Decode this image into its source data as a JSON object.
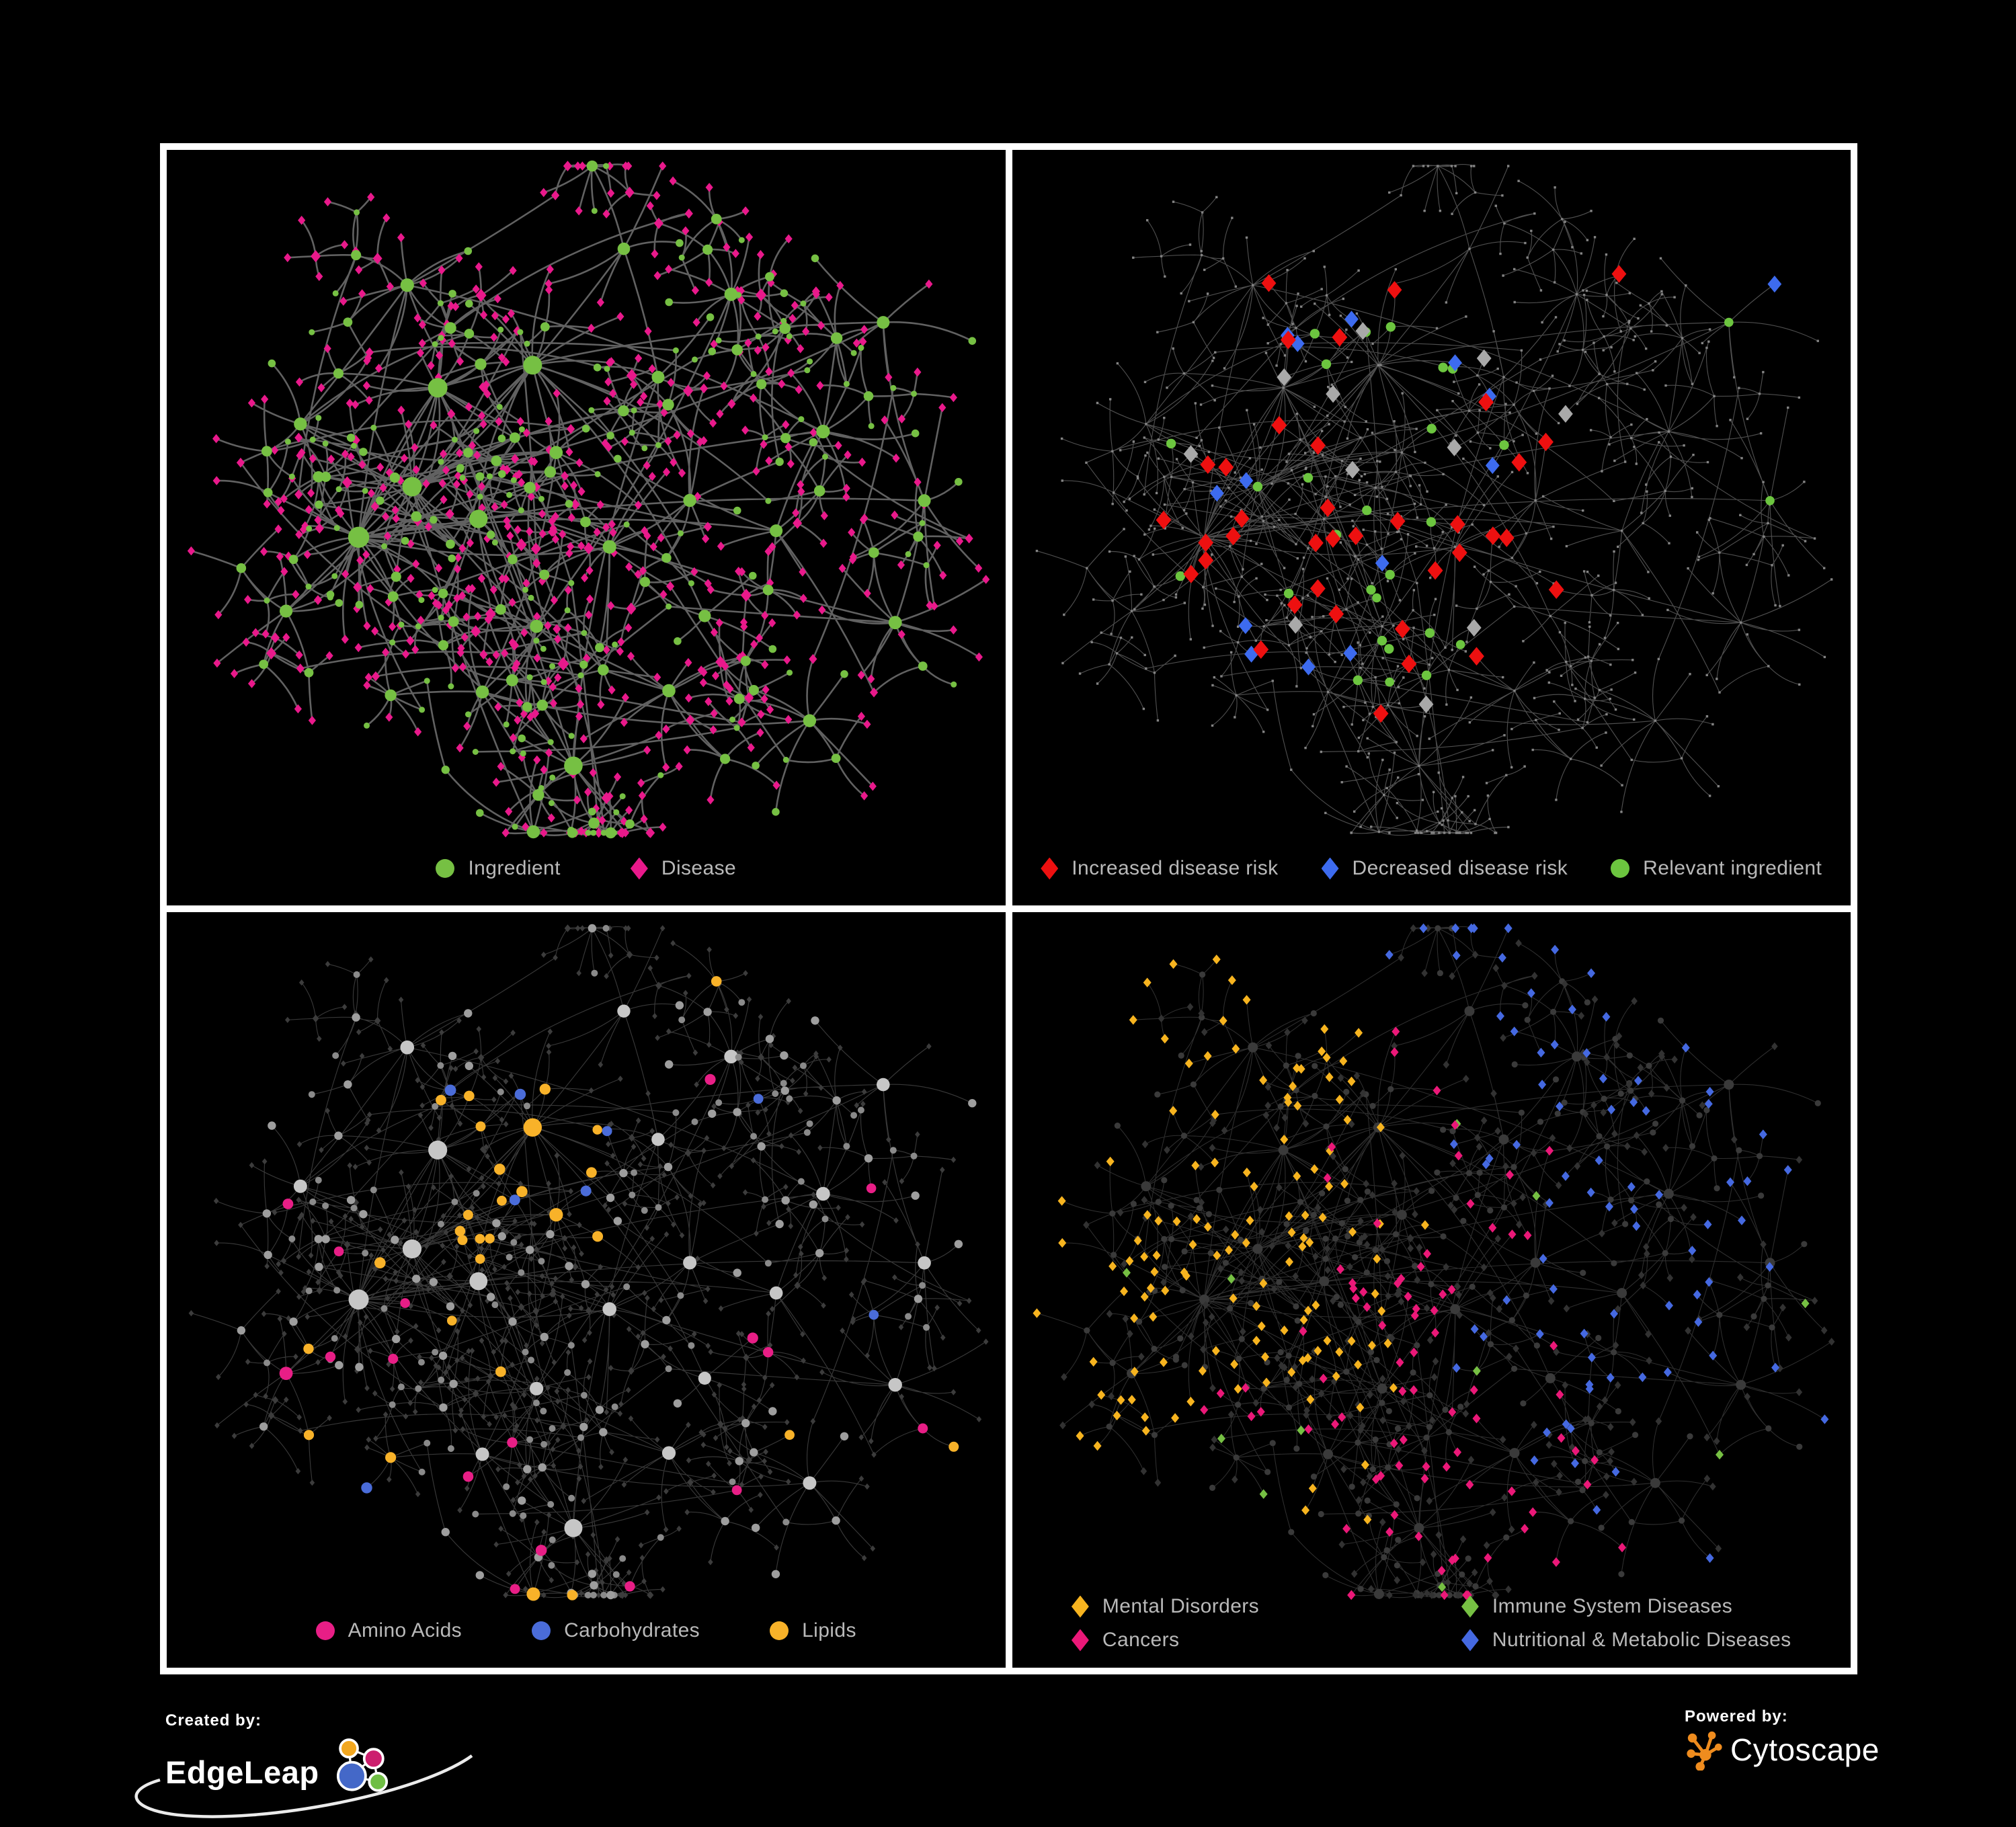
{
  "page": {
    "background": "#000000",
    "frame_border": "#FFFFFF"
  },
  "footer": {
    "created_by": {
      "label": "Created by:",
      "brand": "EdgeLeap"
    },
    "powered_by": {
      "label": "Powered by:",
      "brand": "Cytoscape"
    }
  },
  "legend_text_color": "#B9B9B9",
  "network": {
    "seed": 12,
    "majorHubs": 6,
    "crossLinks": 55,
    "node_types": {
      "circle": "ingredient",
      "diamond": "disease"
    },
    "hubSpots": [
      [
        0.33,
        0.33
      ],
      [
        0.29,
        0.43
      ],
      [
        0.24,
        0.53
      ],
      [
        0.43,
        0.28
      ],
      [
        0.37,
        0.48
      ],
      [
        0.5,
        0.8
      ],
      [
        0.47,
        0.4
      ],
      [
        0.52,
        0.52
      ],
      [
        0.44,
        0.62
      ],
      [
        0.57,
        0.31
      ],
      [
        0.63,
        0.45
      ],
      [
        0.38,
        0.72
      ],
      [
        0.65,
        0.63
      ],
      [
        0.73,
        0.52
      ],
      [
        0.79,
        0.38
      ],
      [
        0.86,
        0.24
      ],
      [
        0.9,
        0.46
      ],
      [
        0.68,
        0.19
      ],
      [
        0.55,
        0.14
      ],
      [
        0.29,
        0.17
      ],
      [
        0.17,
        0.38
      ],
      [
        0.14,
        0.61
      ],
      [
        0.61,
        0.73
      ],
      [
        0.76,
        0.76
      ],
      [
        0.88,
        0.63
      ],
      [
        0.44,
        0.89
      ]
    ]
  },
  "panels": [
    {
      "name": "ingredient-disease-network",
      "legend": [
        {
          "label": "Ingredient",
          "shape": "circle",
          "color": "#76C043"
        },
        {
          "label": "Disease",
          "shape": "diamond",
          "color": "#E9198B"
        }
      ],
      "net": {
        "mode": "base",
        "edge": {
          "color": "#6E6E6E",
          "width": 2.6,
          "opacity": 0.88
        },
        "circle": "#76C043",
        "diamond": "#E9198B"
      }
    },
    {
      "name": "disease-risk-network",
      "legend": [
        {
          "label": "Increased disease risk",
          "shape": "diamond",
          "color": "#EE1010"
        },
        {
          "label": "Decreased disease risk",
          "shape": "diamond",
          "color": "#3D6BEF"
        },
        {
          "label": "Relevant ingredient",
          "shape": "circle",
          "color": "#6CC53F"
        }
      ],
      "net": {
        "mode": "risk",
        "edge": {
          "color": "#5C5C5C",
          "width": 1.15,
          "opacity": 0.85
        },
        "base": "#848484",
        "red": "#EE1010",
        "silver": "#A9A9A9",
        "blue": "#3D6BEF",
        "green": "#6CC53F"
      }
    },
    {
      "name": "nutrient-class-network",
      "legend": [
        {
          "label": "Amino Acids",
          "shape": "circle",
          "color": "#E81E86"
        },
        {
          "label": "Carbohydrates",
          "shape": "circle",
          "color": "#4A6CD9"
        },
        {
          "label": "Lipids",
          "shape": "circle",
          "color": "#F8B229"
        }
      ],
      "net": {
        "mode": "nutrients",
        "edge": {
          "color": "#5E5E5E",
          "width": 1.15,
          "opacity": 0.6
        },
        "diamond": "#3C3C3C",
        "grays": [
          "#C6C6C6",
          "#9E9E9E",
          "#8A8A8A"
        ],
        "pink": "#E81E86",
        "blue": "#4A6CD9",
        "orange": "#F8B229"
      }
    },
    {
      "name": "disease-category-network",
      "legend": [
        {
          "label": "Mental Disorders",
          "shape": "diamond",
          "color": "#F7B41F"
        },
        {
          "label": "Immune System Diseases",
          "shape": "diamond",
          "color": "#76C043"
        },
        {
          "label": "Cancers",
          "shape": "diamond",
          "color": "#EB1878"
        },
        {
          "label": "Nutritional & Metabolic Diseases",
          "shape": "diamond",
          "color": "#4569E1"
        }
      ],
      "net": {
        "mode": "categories",
        "edge": {
          "color": "#555555",
          "width": 1.05,
          "opacity": 0.55
        },
        "circle": "#3A3A3A",
        "diamond": "#323232",
        "orange": "#F7B41F",
        "green": "#76C043",
        "pink": "#EB1878",
        "blue": "#4569E1"
      }
    }
  ]
}
